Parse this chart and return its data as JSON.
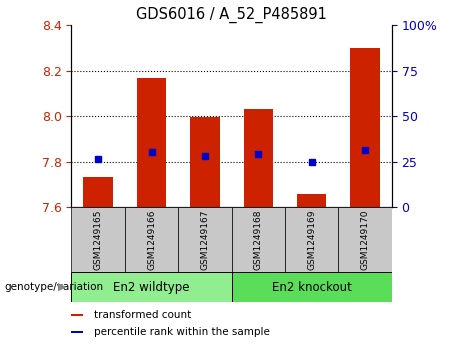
{
  "title": "GDS6016 / A_52_P485891",
  "samples": [
    "GSM1249165",
    "GSM1249166",
    "GSM1249167",
    "GSM1249168",
    "GSM1249169",
    "GSM1249170"
  ],
  "bar_bottom": 7.6,
  "bar_tops": [
    7.73,
    8.17,
    7.995,
    8.03,
    7.655,
    8.3
  ],
  "percentile_values": [
    7.812,
    7.842,
    7.825,
    7.832,
    7.8,
    7.852
  ],
  "ylim": [
    7.6,
    8.4
  ],
  "ylim_right": [
    0,
    100
  ],
  "yticks_left": [
    7.6,
    7.8,
    8.0,
    8.2,
    8.4
  ],
  "yticks_right": [
    0,
    25,
    50,
    75,
    100
  ],
  "ytick_labels_right": [
    "0",
    "25",
    "50",
    "75",
    "100%"
  ],
  "grid_lines": [
    7.8,
    8.0,
    8.2
  ],
  "groups": [
    {
      "label": "En2 wildtype",
      "start": 0,
      "end": 3,
      "color": "#90EE90"
    },
    {
      "label": "En2 knockout",
      "start": 3,
      "end": 6,
      "color": "#5ADE5A"
    }
  ],
  "bar_color": "#CC2200",
  "percentile_color": "#0000CC",
  "tick_area_color": "#C8C8C8",
  "left_tick_color": "#CC2200",
  "right_tick_color": "#0000CC",
  "genotype_label": "genotype/variation",
  "legend_items": [
    {
      "label": "transformed count",
      "color": "#CC2200"
    },
    {
      "label": "percentile rank within the sample",
      "color": "#0000CC"
    }
  ]
}
